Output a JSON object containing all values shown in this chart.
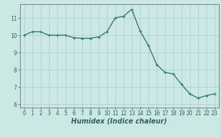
{
  "x": [
    0,
    1,
    2,
    3,
    4,
    5,
    6,
    7,
    8,
    9,
    10,
    11,
    12,
    13,
    14,
    15,
    16,
    17,
    18,
    19,
    20,
    21,
    22,
    23
  ],
  "y": [
    10.0,
    10.2,
    10.2,
    10.0,
    10.0,
    10.0,
    9.85,
    9.82,
    9.82,
    9.9,
    10.2,
    11.0,
    11.1,
    11.5,
    10.25,
    9.4,
    8.3,
    7.85,
    7.75,
    7.15,
    6.6,
    6.35,
    6.5,
    6.6
  ],
  "line_color": "#2d7a6e",
  "marker": "+",
  "marker_size": 3,
  "bg_color": "#cce8e4",
  "grid_color": "#aacccc",
  "xlabel": "Humidex (Indice chaleur)",
  "xlim": [
    -0.5,
    23.5
  ],
  "ylim": [
    5.8,
    11.8
  ],
  "yticks": [
    6,
    7,
    8,
    9,
    10,
    11
  ],
  "xticks": [
    0,
    1,
    2,
    3,
    4,
    5,
    6,
    7,
    8,
    9,
    10,
    11,
    12,
    13,
    14,
    15,
    16,
    17,
    18,
    19,
    20,
    21,
    22,
    23
  ],
  "tick_fontsize": 5.5,
  "xlabel_fontsize": 7,
  "line_width": 1.0
}
